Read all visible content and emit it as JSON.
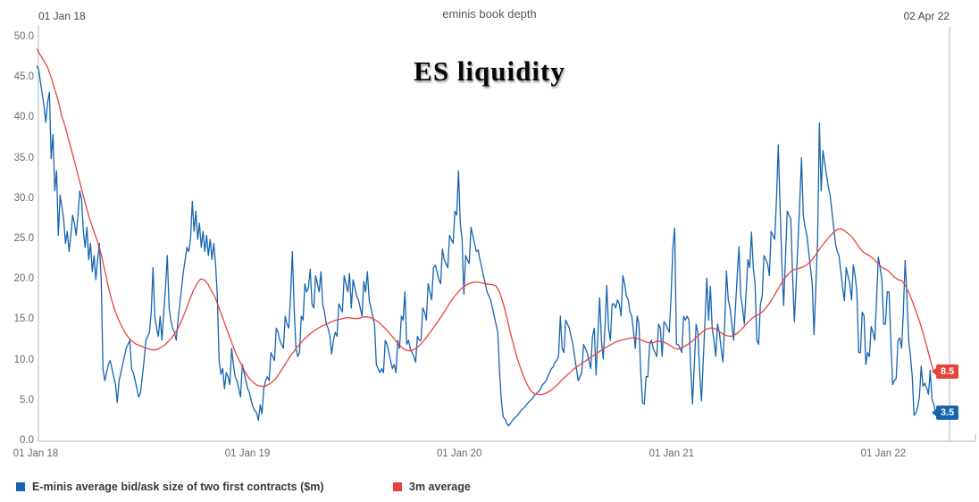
{
  "header": {
    "subtitle": "eminis book depth",
    "title": "ES liquidity",
    "left_date": "01 Jan 18",
    "right_date": "02 Apr 22"
  },
  "legend": {
    "items": [
      {
        "label": "E-minis average bid/ask size of two first contracts ($m)",
        "color": "#1664af"
      },
      {
        "label": "3m average",
        "color": "#e8443c"
      }
    ]
  },
  "chart_data": {
    "type": "line",
    "title": "ES liquidity",
    "subtitle": "eminis book depth",
    "x_axis": {
      "start_date": "01 Jan 18",
      "end_date": "02 Apr 22",
      "unit": "days since 01 Jan 18",
      "ticks": [
        {
          "day": 0,
          "label": "01 Jan 18"
        },
        {
          "day": 365,
          "label": "01 Jan 19"
        },
        {
          "day": 730,
          "label": "01 Jan 20"
        },
        {
          "day": 1096,
          "label": "01 Jan 21"
        },
        {
          "day": 1461,
          "label": "01 Jan 22"
        }
      ],
      "total_days": 1552
    },
    "y_axis": {
      "min": 0,
      "max": 50,
      "tick_step": 5,
      "grid": false
    },
    "legend_position": "bottom-left",
    "end_labels": {
      "red": "8.5",
      "blue": "3.5"
    },
    "colors": {
      "blue_series": "#1664af",
      "red_series": "#e8443c",
      "axis": "#a7b6c2",
      "tick_text": "#5f6b76"
    },
    "series": [
      {
        "name": "E-minis average bid/ask size of two first contracts ($m)",
        "color": "#1664af",
        "start_day": 2,
        "end_day": 1551,
        "values": [
          46.5,
          46,
          44.5,
          43,
          41.5,
          39.5,
          42,
          43.2,
          35,
          38,
          31,
          33.5,
          25.5,
          30.5,
          29,
          27.5,
          24.5,
          26,
          23.5,
          25.5,
          28,
          27,
          25.5,
          28,
          31,
          30,
          26,
          24,
          26.5,
          22.5,
          24.5,
          21,
          23,
          20,
          22.5,
          24.5,
          20,
          9,
          7.5,
          8.5,
          9.5,
          10,
          9,
          8,
          7,
          4.8,
          7.5,
          8.5,
          9.5,
          10.5,
          11.5,
          12,
          12.5,
          9,
          8.5,
          7.5,
          6.5,
          5.5,
          6,
          8,
          10,
          12.5,
          13,
          13.5,
          16,
          21.5,
          15.5,
          14,
          13,
          15.5,
          12.5,
          16,
          19,
          23,
          16.5,
          15,
          14,
          13.5,
          12.5,
          15,
          17,
          19,
          21,
          22.5,
          24,
          23.5,
          25,
          29.7,
          26,
          28.5,
          25,
          27,
          24,
          26,
          23.5,
          25.5,
          23,
          25,
          22.5,
          24.5,
          22,
          18,
          10,
          8.3,
          9,
          6.5,
          8.5,
          8,
          7,
          11.5,
          9.5,
          8,
          7.5,
          6.5,
          5.5,
          9.5,
          8.5,
          7.5,
          6.5,
          6,
          5,
          4.2,
          3.8,
          3.5,
          2.6,
          4.5,
          3.4,
          6.5,
          7.5,
          8,
          7.5,
          11,
          10.5,
          10,
          14,
          13.5,
          12.5,
          12,
          11.5,
          15.5,
          14.5,
          14,
          18,
          23.5,
          16.5,
          11.5,
          10.5,
          11,
          15.5,
          15,
          19.5,
          18.5,
          19,
          21.3,
          17,
          16.5,
          20.5,
          19.5,
          18.5,
          21,
          17,
          16,
          14.5,
          14,
          13,
          10.8,
          12.5,
          13.5,
          13,
          17,
          16.5,
          16,
          20.5,
          19.5,
          18.5,
          20.8,
          16.5,
          20,
          19,
          18,
          17.5,
          16.5,
          15.5,
          19.8,
          18.5,
          21,
          17.5,
          16.5,
          15.5,
          14.5,
          9.5,
          9,
          8.5,
          9,
          8.5,
          12.5,
          12,
          11,
          10,
          9,
          9.5,
          8.5,
          12.5,
          11.5,
          15.5,
          15,
          18.5,
          12,
          12.5,
          11.5,
          11,
          10.5,
          9.8,
          13,
          12.5,
          12.5,
          16.5,
          16,
          15,
          19.5,
          18.5,
          17.5,
          21.5,
          21.8,
          21,
          20,
          19.5,
          23.8,
          22.5,
          22,
          21.5,
          25.5,
          25,
          24.5,
          28.5,
          28,
          33.5,
          27,
          25,
          18.2,
          23,
          22.5,
          22,
          26.5,
          25.5,
          24.5,
          23.5,
          23.7,
          22.5,
          21.5,
          20.5,
          19.5,
          18.5,
          18,
          17.5,
          16.5,
          15.5,
          14.5,
          13.5,
          8.5,
          5,
          3,
          2.8,
          2.2,
          1.9,
          2.2,
          2.5,
          2.8,
          3,
          3.2,
          3.5,
          3.8,
          4,
          4.2,
          4.5,
          4.8,
          5,
          5.2,
          5.5,
          5.8,
          6,
          6.2,
          6.5,
          7,
          7.2,
          7.5,
          8,
          8.5,
          9,
          9.2,
          9.8,
          10,
          10.5,
          15.5,
          11.5,
          11,
          15,
          14.5,
          14,
          13,
          12,
          10.5,
          9,
          7.5,
          8,
          8.5,
          12,
          11.5,
          11,
          10,
          9,
          13,
          14,
          8.2,
          13,
          17.8,
          12.5,
          10.2,
          14,
          19.3,
          14,
          12.5,
          17,
          17,
          16.5,
          17.5,
          17,
          15.5,
          20.5,
          19.5,
          18,
          17.5,
          16,
          15.5,
          13.5,
          11.5,
          15.5,
          14.5,
          8.5,
          4.8,
          4.6,
          8,
          8,
          12,
          12.5,
          11.5,
          11,
          10.5,
          14.5,
          14,
          10.5,
          14.8,
          14.5,
          14,
          13.5,
          18,
          24,
          26.4,
          12,
          12,
          11.5,
          11,
          15.5,
          15,
          15.5,
          15,
          9,
          4.6,
          9.5,
          14.5,
          13.5,
          8.5,
          5,
          10,
          15,
          20.2,
          15,
          19.2,
          14,
          12.5,
          10.5,
          14.5,
          13.5,
          11.5,
          9.8,
          14.5,
          21.1,
          17.5,
          16.5,
          14.5,
          12.5,
          16.5,
          20.5,
          24.1,
          18,
          16.5,
          14.5,
          18.5,
          22.5,
          21.5,
          25.9,
          21.5,
          19.5,
          12.5,
          12,
          17,
          18,
          23,
          22.5,
          22,
          20.5,
          26,
          25.5,
          25,
          30,
          36.7,
          29,
          22,
          16.8,
          22.5,
          28.5,
          28,
          27.5,
          20.5,
          14.8,
          19.5,
          24.5,
          29.5,
          35.1,
          28,
          26.5,
          25.5,
          23.5,
          21.5,
          19.5,
          13.2,
          19,
          25,
          39.4,
          31,
          36,
          34.5,
          33,
          31.5,
          30.5,
          28.5,
          26.5,
          24.5,
          23.5,
          23,
          21,
          19,
          17.4,
          21.5,
          20.5,
          19.5,
          17.5,
          21.8,
          20.5,
          18.5,
          11,
          11,
          16,
          15.5,
          9.5,
          11,
          10.5,
          14.2,
          13.5,
          12.5,
          17.5,
          22.8,
          21.5,
          20,
          14.5,
          14.5,
          18.5,
          18.5,
          12.5,
          7,
          7.5,
          7.8,
          12.5,
          12.8,
          11.5,
          16,
          22.4,
          18,
          12.5,
          10.5,
          8,
          3.2,
          3.5,
          4.2,
          5.5,
          9.3,
          6.8,
          7.2,
          6.6,
          5.8,
          8.8,
          5.2,
          4.6,
          3.5
        ]
      },
      {
        "name": "3m average",
        "color": "#e8443c",
        "start_day": 2,
        "end_day": 1548,
        "values": [
          48.6,
          47.8,
          47.1,
          46.3,
          45.1,
          43.6,
          42.2,
          40.2,
          38.9,
          37.2,
          35.6,
          33.9,
          32.2,
          30.5,
          28.8,
          27.3,
          26,
          24.8,
          23.3,
          21.3,
          19.3,
          17.5,
          16.1,
          15,
          14.1,
          13.3,
          12.7,
          12.3,
          12,
          11.85,
          11.65,
          11.5,
          11.35,
          11.3,
          11.4,
          11.65,
          11.95,
          12.4,
          12.9,
          13.5,
          14.3,
          15.3,
          16.4,
          17.6,
          18.7,
          19.5,
          20.1,
          20,
          19.5,
          18.7,
          17.9,
          16.7,
          15.5,
          14.3,
          13.1,
          11.9,
          10.8,
          9.9,
          9,
          8.2,
          7.6,
          7.2,
          6.9,
          6.8,
          6.8,
          7,
          7.3,
          7.7,
          8.3,
          9,
          9.7,
          10.4,
          11,
          11.6,
          12.1,
          12.6,
          13,
          13.4,
          13.7,
          14,
          14.25,
          14.45,
          14.65,
          14.85,
          15,
          15.1,
          15.2,
          15.3,
          15.3,
          15.2,
          15.2,
          15.3,
          15.4,
          15.4,
          15.25,
          15.05,
          14.75,
          14.35,
          13.9,
          13.4,
          12.9,
          12.35,
          11.85,
          11.45,
          11.25,
          11.2,
          11.35,
          11.65,
          12.1,
          12.6,
          13.2,
          13.8,
          14.4,
          15.05,
          15.7,
          16.4,
          17.1,
          17.75,
          18.3,
          18.8,
          19.15,
          19.45,
          19.6,
          19.7,
          19.7,
          19.6,
          19.5,
          19.45,
          19.4,
          19.25,
          18.45,
          17.1,
          15.4,
          13.5,
          11.8,
          10.2,
          8.9,
          7.75,
          6.8,
          6.15,
          5.85,
          5.8,
          5.8,
          5.95,
          6.2,
          6.5,
          6.9,
          7.35,
          7.8,
          8.2,
          8.6,
          9,
          9.3,
          9.6,
          9.9,
          10.2,
          10.5,
          10.8,
          11.1,
          11.4,
          11.65,
          11.9,
          12.15,
          12.35,
          12.5,
          12.6,
          12.7,
          12.8,
          12.8,
          12.7,
          12.5,
          12.3,
          12.2,
          12.2,
          12.35,
          12.4,
          12.3,
          12.1,
          11.85,
          11.55,
          11.4,
          11.55,
          11.75,
          12.05,
          12.35,
          12.75,
          13.15,
          13.55,
          13.85,
          14,
          14,
          13.8,
          13.5,
          13.2,
          13.05,
          13,
          13.15,
          13.45,
          13.85,
          14.35,
          14.85,
          15.25,
          15.55,
          15.75,
          16.1,
          16.6,
          17.2,
          17.9,
          18.7,
          19.45,
          20.1,
          20.65,
          21.05,
          21.3,
          21.4,
          21.55,
          21.75,
          22.1,
          22.6,
          23.2,
          23.85,
          24.45,
          25,
          25.5,
          25.95,
          26.25,
          26.3,
          26.05,
          25.7,
          25.3,
          24.7,
          24.05,
          23.5,
          23.2,
          22.95,
          22.6,
          22.15,
          21.7,
          21.4,
          21.2,
          20.75,
          20.3,
          20,
          19.9,
          19.3,
          18.4,
          17.3,
          16.1,
          14.8,
          13.4,
          11.8,
          10.1,
          8.6
        ]
      }
    ]
  }
}
